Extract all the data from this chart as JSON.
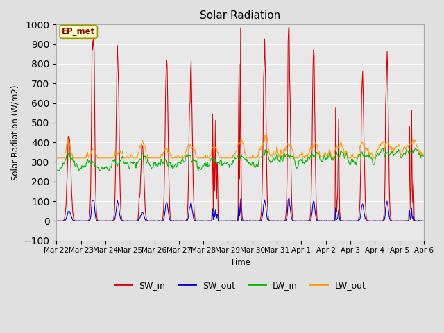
{
  "title": "Solar Radiation",
  "ylabel": "Solar Radiation (W/m2)",
  "xlabel": "Time",
  "ylim": [
    -100,
    1000
  ],
  "yticks": [
    -100,
    0,
    100,
    200,
    300,
    400,
    500,
    600,
    700,
    800,
    900,
    1000
  ],
  "bg_color": "#e0e0e0",
  "plot_bg": "#e8e8e8",
  "line_colors": {
    "SW_in": "#dd0000",
    "SW_out": "#0000dd",
    "LW_in": "#00bb00",
    "LW_out": "#ff9900"
  },
  "annotation_label": "EP_met",
  "annotation_box_color": "#ffffcc",
  "annotation_border_color": "#999900",
  "tick_labels": [
    "Mar 22",
    "Mar 23",
    "Mar 24",
    "Mar 25",
    "Mar 26",
    "Mar 27",
    "Mar 28",
    "Mar 29",
    "Mar 30",
    "Mar 31",
    "Apr 1",
    "Apr 2",
    "Apr 3",
    "Apr 4",
    "Apr 5",
    "Apr 6"
  ],
  "n_days": 15,
  "n_per_day": 48
}
